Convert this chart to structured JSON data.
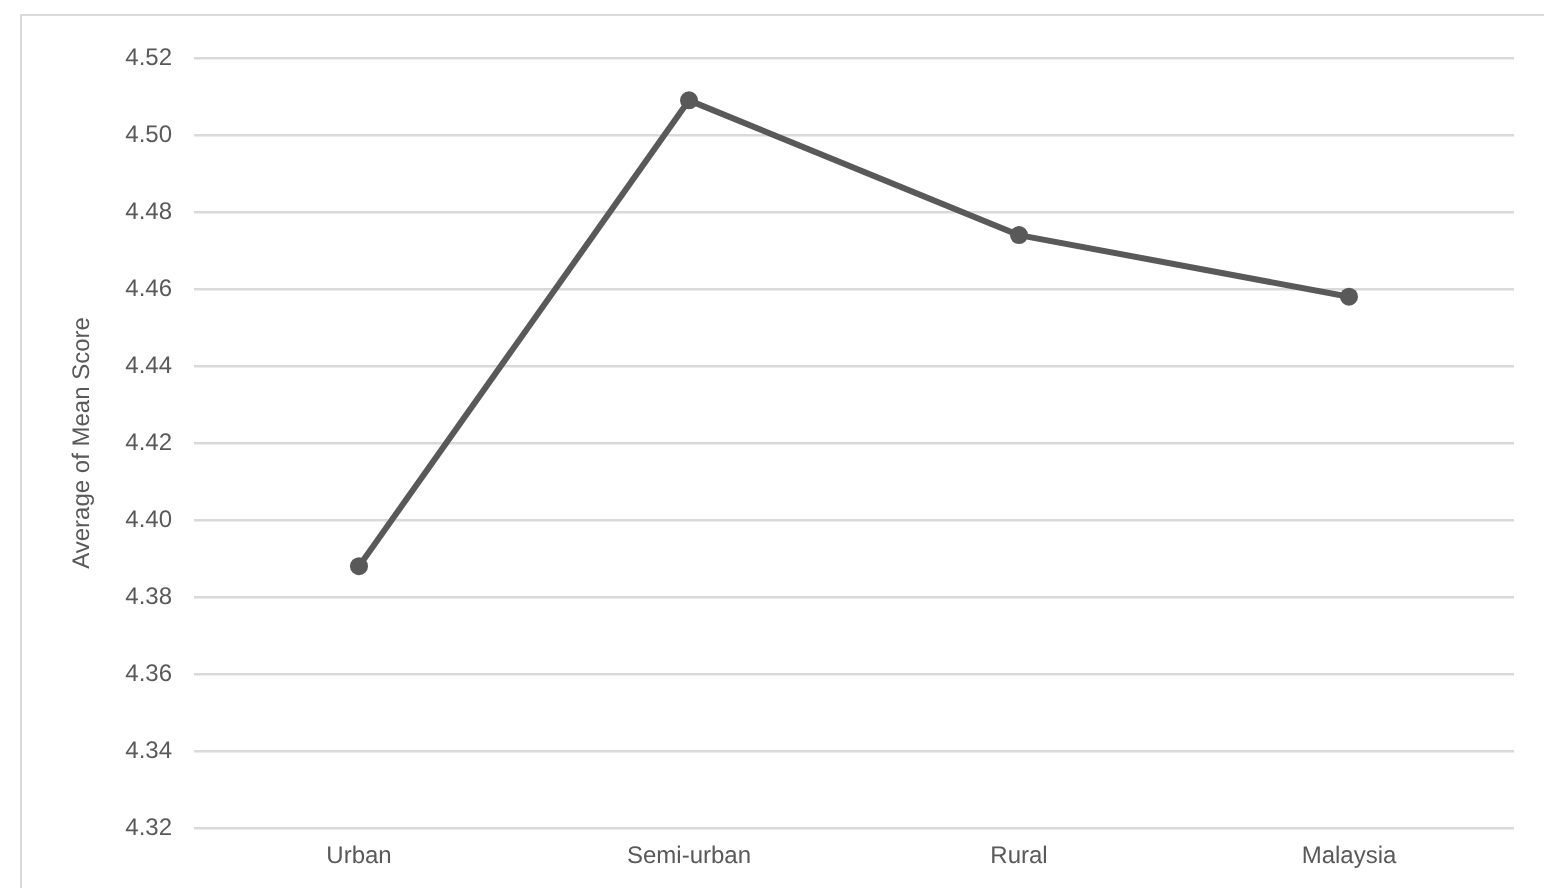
{
  "chart_data": {
    "type": "line",
    "ylabel": "Average of Mean Score",
    "categories": [
      "Urban",
      "Semi-urban",
      "Rural",
      "Malaysia"
    ],
    "series": [
      {
        "color": "#595959",
        "values": [
          4.388,
          4.509,
          4.474,
          4.458
        ]
      }
    ],
    "ylim": [
      4.32,
      4.52
    ],
    "yticks": [
      4.32,
      4.34,
      4.36,
      4.38,
      {
        "value": 4.4,
        "label": "4.40"
      },
      4.42,
      4.44,
      4.46,
      4.48,
      {
        "value": 4.5,
        "label": "4.50"
      },
      4.52
    ],
    "grid": "y",
    "marker": "circle",
    "line_style": "solid"
  }
}
